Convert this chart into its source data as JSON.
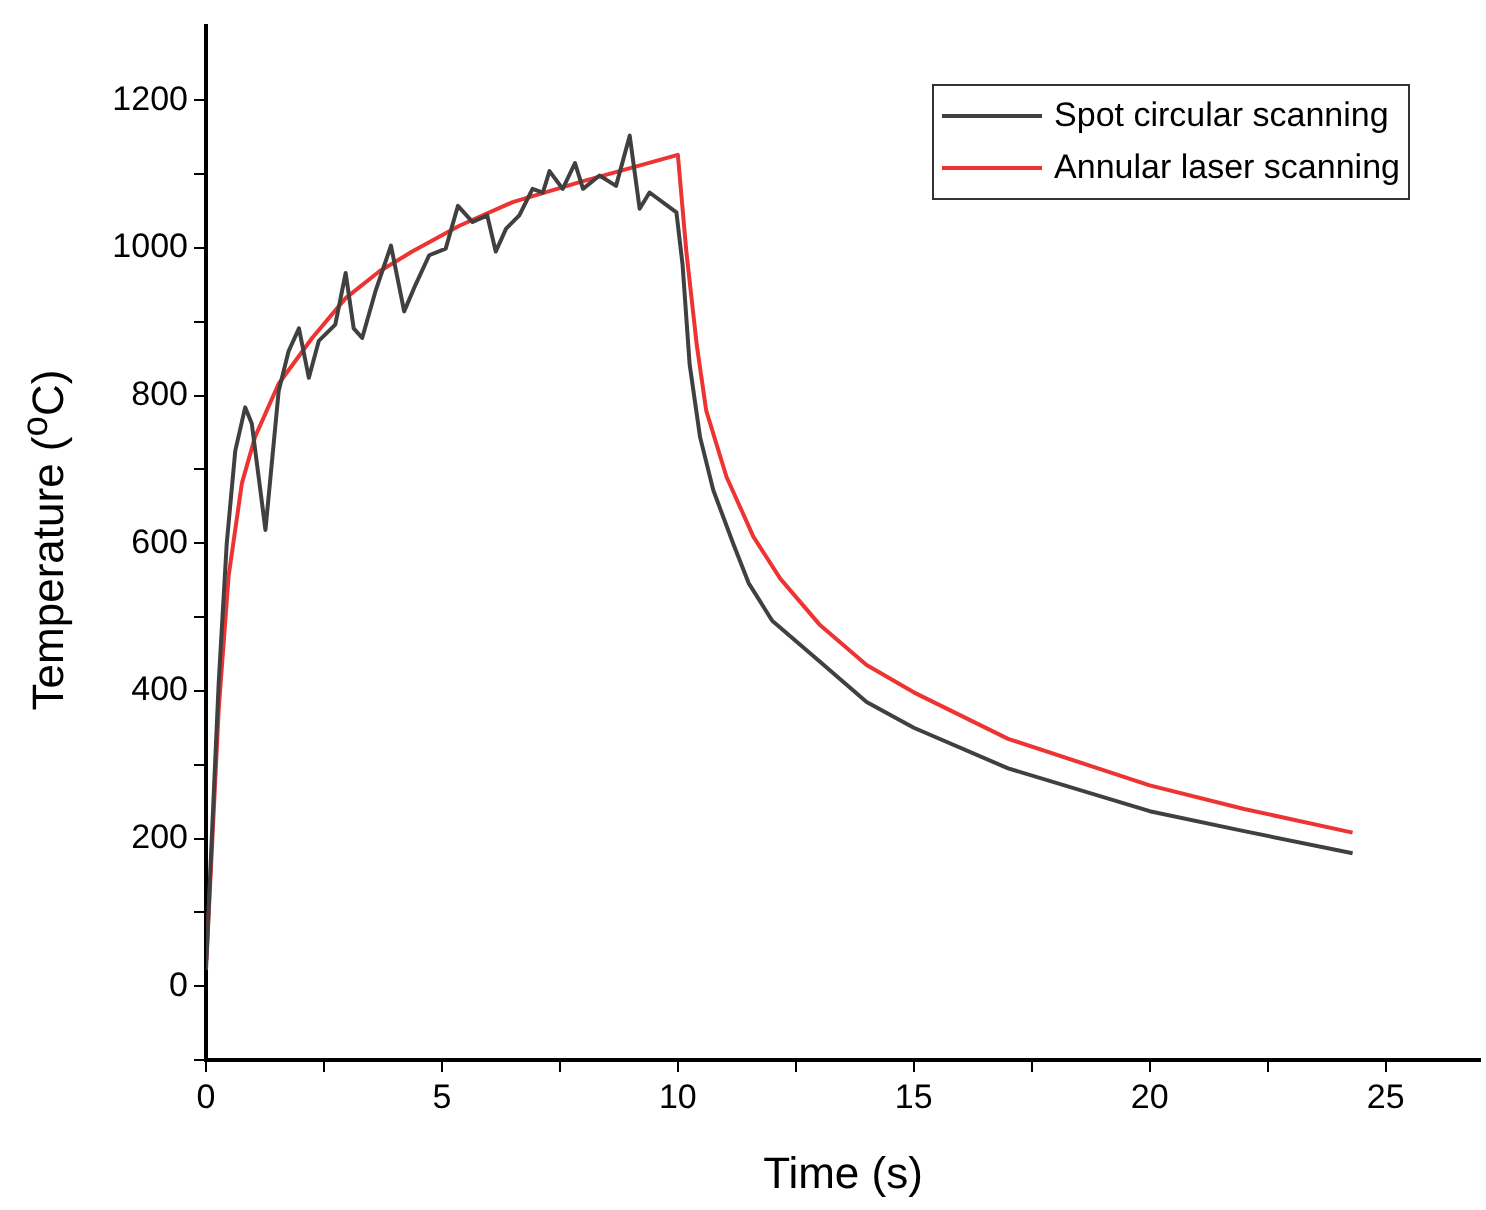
{
  "chart_data": {
    "type": "line",
    "xlabel": "Time (s)",
    "ylabel": "Temperature ($^{o}$C)",
    "xlim": [
      0,
      27
    ],
    "ylim": [
      -100,
      1300
    ],
    "xticks": [
      0,
      {
        "value": 2.5,
        "label": null
      },
      5,
      {
        "value": 7.5,
        "label": null
      },
      10,
      {
        "value": 12.5,
        "label": null
      },
      15,
      {
        "value": 17.5,
        "label": null
      },
      20,
      {
        "value": 22.5,
        "label": null
      },
      25
    ],
    "yticks": [
      {
        "value": -100,
        "label": null
      },
      0,
      {
        "value": 100,
        "label": null
      },
      200,
      {
        "value": 300,
        "label": null
      },
      400,
      {
        "value": 500,
        "label": null
      },
      600,
      {
        "value": 700,
        "label": null
      },
      800,
      {
        "value": 900,
        "label": null
      },
      1000,
      {
        "value": 1100,
        "label": null
      },
      1200
    ],
    "grid": false,
    "legend": "top right",
    "marker": "none",
    "line_style": "solid",
    "series": [
      {
        "name": "Spot circular scanning",
        "color": "#404040",
        "x": [
          0,
          0.12,
          0.27,
          0.44,
          0.62,
          0.83,
          0.97,
          1.26,
          1.54,
          1.75,
          1.97,
          2.18,
          2.39,
          2.74,
          2.96,
          3.13,
          3.31,
          3.59,
          3.92,
          4.2,
          4.44,
          4.73,
          5.08,
          5.34,
          5.65,
          5.96,
          6.14,
          6.36,
          6.64,
          6.92,
          7.14,
          7.28,
          7.56,
          7.82,
          7.99,
          8.34,
          8.69,
          8.98,
          9.19,
          9.4,
          9.97,
          10.1,
          10.25,
          10.47,
          10.75,
          11.17,
          11.5,
          12,
          13,
          14,
          15,
          17,
          20,
          22,
          24.3
        ],
        "values": [
          22,
          197,
          412,
          600,
          725,
          784,
          762,
          618,
          806,
          860,
          891,
          824,
          874,
          896,
          966,
          891,
          878,
          941,
          1003,
          914,
          950,
          990,
          999,
          1057,
          1035,
          1044,
          995,
          1026,
          1044,
          1080,
          1075,
          1104,
          1080,
          1115,
          1080,
          1098,
          1084,
          1152,
          1053,
          1075,
          1048,
          977,
          842,
          744,
          672,
          600,
          546,
          495,
          440,
          385,
          350,
          295,
          237,
          210,
          180
        ]
      },
      {
        "name": "Annular laser scanning",
        "color": "#ee3333",
        "x": [
          0.01,
          0.27,
          0.48,
          0.76,
          1.04,
          1.54,
          2.25,
          2.96,
          3.67,
          4.37,
          5.37,
          6.5,
          7.92,
          10,
          10.18,
          10.4,
          10.6,
          11.03,
          11.6,
          12.17,
          13,
          14,
          15,
          17,
          20,
          22,
          24.3
        ],
        "values": [
          36,
          376,
          556,
          681,
          744,
          816,
          878,
          932,
          968,
          995,
          1030,
          1062,
          1089,
          1126,
          995,
          869,
          780,
          690,
          609,
          552,
          490,
          435,
          398,
          335,
          272,
          240,
          208
        ]
      }
    ]
  }
}
